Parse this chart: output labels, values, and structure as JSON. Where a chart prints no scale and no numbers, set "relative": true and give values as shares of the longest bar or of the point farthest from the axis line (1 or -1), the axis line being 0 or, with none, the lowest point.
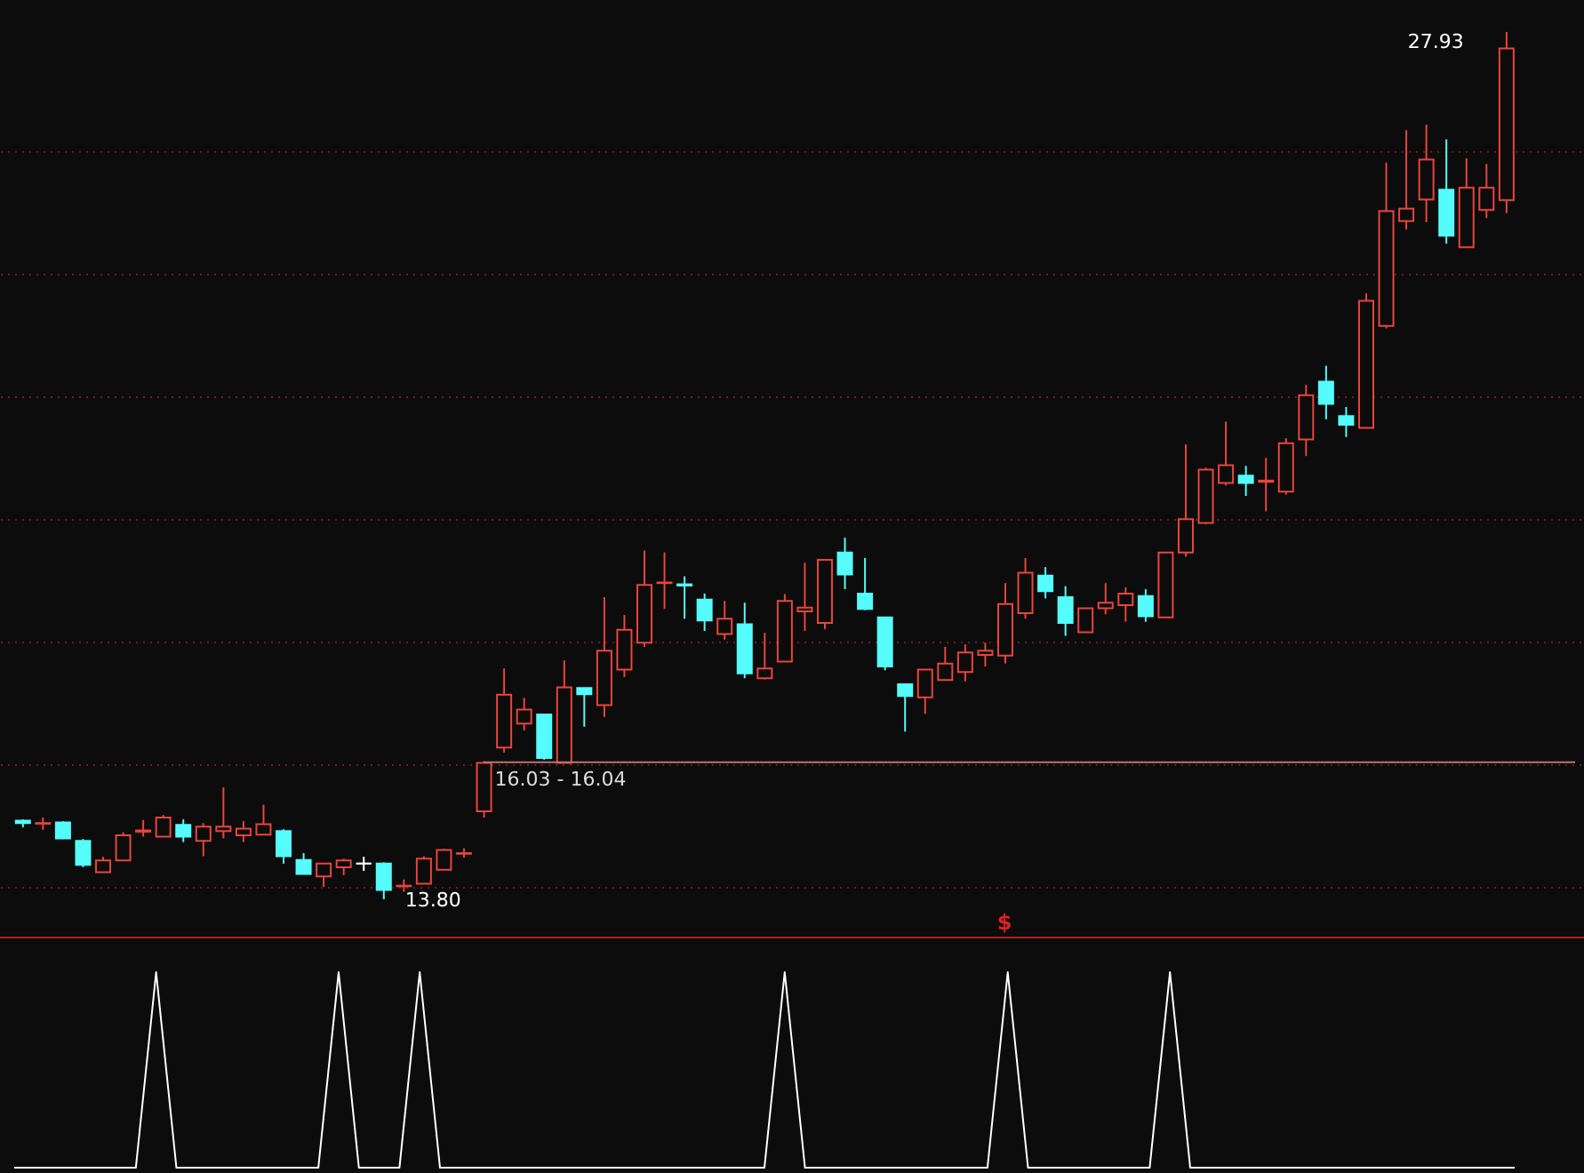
{
  "chart_data": [
    {
      "type": "candlestick",
      "categories": [
        null,
        null,
        null,
        null,
        null,
        null,
        null,
        null,
        null,
        null,
        null,
        null,
        null,
        null,
        null,
        null,
        null,
        null,
        null,
        null,
        null,
        null,
        null,
        null,
        null,
        null,
        null,
        null,
        null,
        null,
        null,
        null,
        null,
        null,
        null,
        null,
        null,
        null,
        null,
        null,
        null,
        null,
        null,
        null,
        null,
        null,
        null,
        null,
        null,
        null,
        null,
        null,
        null,
        null,
        null,
        null,
        null,
        null,
        null,
        null,
        null,
        null,
        null,
        null,
        null,
        null,
        null,
        null,
        null,
        null,
        null,
        null,
        null,
        null,
        null
      ],
      "ohlc": [
        [
          15.08,
          15.1,
          14.97,
          15.04
        ],
        [
          15.03,
          15.13,
          14.93,
          15.04
        ],
        [
          15.05,
          15.07,
          14.78,
          14.79
        ],
        [
          14.75,
          14.78,
          14.32,
          14.36
        ],
        [
          14.24,
          14.49,
          14.23,
          14.43
        ],
        [
          14.43,
          14.89,
          14.43,
          14.84
        ],
        [
          14.9,
          15.09,
          14.82,
          14.92
        ],
        [
          14.82,
          15.17,
          14.82,
          15.13
        ],
        [
          15.01,
          15.1,
          14.73,
          14.82
        ],
        [
          14.75,
          15.04,
          14.5,
          14.98
        ],
        [
          14.91,
          15.62,
          14.79,
          14.98
        ],
        [
          14.84,
          15.07,
          14.73,
          14.95
        ],
        [
          14.85,
          15.34,
          14.85,
          15.02
        ],
        [
          14.91,
          14.94,
          14.38,
          14.5
        ],
        [
          14.44,
          14.55,
          14.21,
          14.21
        ],
        [
          14.17,
          14.38,
          14.0,
          14.38
        ],
        [
          14.32,
          14.46,
          14.19,
          14.43
        ],
        [
          14.38,
          14.49,
          14.26,
          14.38
        ],
        [
          14.38,
          14.4,
          13.8,
          13.95
        ],
        [
          14.01,
          14.12,
          13.92,
          14.02
        ],
        [
          14.05,
          14.5,
          14.05,
          14.46
        ],
        [
          14.28,
          14.62,
          14.28,
          14.6
        ],
        [
          14.54,
          14.63,
          14.48,
          14.55
        ],
        [
          15.23,
          16.05,
          15.13,
          16.02
        ],
        [
          16.27,
          17.56,
          16.19,
          17.13
        ],
        [
          16.66,
          17.08,
          16.55,
          16.89
        ],
        [
          16.81,
          16.81,
          16.07,
          16.1
        ],
        [
          16.02,
          17.69,
          16.02,
          17.25
        ],
        [
          17.24,
          17.24,
          16.61,
          17.14
        ],
        [
          16.96,
          18.72,
          16.77,
          17.85
        ],
        [
          17.54,
          18.43,
          17.42,
          18.19
        ],
        [
          17.98,
          19.48,
          17.91,
          18.92
        ],
        [
          18.95,
          19.45,
          18.53,
          18.96
        ],
        [
          18.93,
          19.06,
          18.37,
          18.91
        ],
        [
          18.68,
          18.78,
          18.17,
          18.34
        ],
        [
          18.12,
          18.66,
          18.03,
          18.37
        ],
        [
          18.28,
          18.63,
          17.4,
          17.48
        ],
        [
          17.4,
          18.14,
          17.38,
          17.56
        ],
        [
          17.67,
          18.77,
          17.67,
          18.66
        ],
        [
          18.49,
          19.28,
          18.17,
          18.55
        ],
        [
          18.3,
          19.33,
          18.2,
          19.33
        ],
        [
          19.45,
          19.69,
          18.85,
          19.09
        ],
        [
          18.78,
          19.36,
          18.51,
          18.53
        ],
        [
          18.39,
          18.39,
          17.53,
          17.59
        ],
        [
          17.3,
          17.3,
          16.53,
          17.11
        ],
        [
          17.09,
          17.54,
          16.82,
          17.54
        ],
        [
          17.37,
          17.91,
          17.37,
          17.64
        ],
        [
          17.5,
          17.95,
          17.35,
          17.82
        ],
        [
          17.78,
          17.98,
          17.59,
          17.85
        ],
        [
          17.77,
          18.95,
          17.64,
          18.61
        ],
        [
          18.46,
          19.36,
          18.37,
          19.12
        ],
        [
          19.07,
          19.21,
          18.7,
          18.82
        ],
        [
          18.72,
          18.9,
          18.09,
          18.3
        ],
        [
          18.15,
          18.54,
          18.15,
          18.54
        ],
        [
          18.54,
          18.95,
          18.44,
          18.63
        ],
        [
          18.59,
          18.88,
          18.32,
          18.78
        ],
        [
          18.74,
          18.85,
          18.32,
          18.41
        ],
        [
          18.39,
          19.45,
          18.39,
          19.45
        ],
        [
          19.45,
          21.21,
          19.38,
          19.99
        ],
        [
          19.93,
          20.83,
          19.91,
          20.8
        ],
        [
          20.58,
          21.58,
          20.54,
          20.87
        ],
        [
          20.7,
          20.86,
          20.37,
          20.58
        ],
        [
          20.6,
          20.99,
          20.12,
          20.62
        ],
        [
          20.44,
          21.31,
          20.39,
          21.23
        ],
        [
          21.29,
          22.18,
          21.02,
          22.01
        ],
        [
          22.23,
          22.49,
          21.62,
          21.87
        ],
        [
          21.67,
          21.82,
          21.33,
          21.53
        ],
        [
          21.48,
          23.67,
          21.48,
          23.55
        ],
        [
          23.14,
          25.8,
          23.1,
          25.01
        ],
        [
          24.85,
          26.33,
          24.71,
          25.05
        ],
        [
          25.2,
          26.42,
          24.83,
          25.85
        ],
        [
          25.36,
          26.18,
          24.48,
          24.61
        ],
        [
          24.42,
          25.87,
          24.42,
          25.39
        ],
        [
          25.03,
          25.78,
          24.9,
          25.39
        ],
        [
          25.19,
          27.93,
          24.98,
          27.66
        ]
      ],
      "colors": [
        "#54fcfc",
        "#e8453c",
        "#54fcfc",
        "#54fcfc",
        "#e8453c",
        "#e8453c",
        "#e8453c",
        "#e8453c",
        "#54fcfc",
        "#e8453c",
        "#e8453c",
        "#e8453c",
        "#e8453c",
        "#54fcfc",
        "#54fcfc",
        "#e8453c",
        "#e8453c",
        "#ffffff",
        "#54fcfc",
        "#e8453c",
        "#e8453c",
        "#e8453c",
        "#e8453c",
        "#e8453c",
        "#e8453c",
        "#e8453c",
        "#54fcfc",
        "#e8453c",
        "#54fcfc",
        "#e8453c",
        "#e8453c",
        "#e8453c",
        "#e8453c",
        "#54fcfc",
        "#54fcfc",
        "#e8453c",
        "#54fcfc",
        "#e8453c",
        "#e8453c",
        "#e8453c",
        "#e8453c",
        "#54fcfc",
        "#54fcfc",
        "#54fcfc",
        "#54fcfc",
        "#e8453c",
        "#e8453c",
        "#e8453c",
        "#e8453c",
        "#e8453c",
        "#e8453c",
        "#54fcfc",
        "#54fcfc",
        "#e8453c",
        "#e8453c",
        "#e8453c",
        "#54fcfc",
        "#e8453c",
        "#e8453c",
        "#e8453c",
        "#e8453c",
        "#54fcfc",
        "#e8453c",
        "#e8453c",
        "#e8453c",
        "#54fcfc",
        "#54fcfc",
        "#e8453c",
        "#e8453c",
        "#e8453c",
        "#e8453c",
        "#54fcfc",
        "#e8453c",
        "#e8453c",
        "#e8453c"
      ],
      "ylim": [
        13.19,
        28.45
      ],
      "yticks": [
        {
          "value": 14,
          "label": null
        },
        {
          "value": 16,
          "label": null
        },
        {
          "value": 18,
          "label": null
        },
        {
          "value": 20,
          "label": null
        },
        {
          "value": 22,
          "label": null
        },
        {
          "value": 24,
          "label": null
        },
        {
          "value": 26,
          "label": null
        }
      ],
      "grid": "y",
      "ref_lines": [
        {
          "axis": "y",
          "value": 16.03,
          "label": "16.03 - 16.04",
          "color": "#c07070"
        }
      ],
      "annotations": [
        "27.93",
        "13.80"
      ]
    },
    {
      "type": "line",
      "relative": true,
      "categories": [
        null,
        null,
        null,
        null,
        null,
        null,
        null,
        null,
        null,
        null,
        null,
        null,
        null,
        null,
        null,
        null,
        null,
        null,
        null,
        null,
        null,
        null,
        null,
        null,
        null,
        null,
        null,
        null,
        null,
        null,
        null,
        null,
        null,
        null,
        null,
        null,
        null,
        null,
        null,
        null,
        null,
        null,
        null,
        null,
        null,
        null,
        null,
        null,
        null,
        null,
        null,
        null,
        null,
        null,
        null,
        null,
        null,
        null,
        null,
        null,
        null,
        null,
        null,
        null,
        null,
        null,
        null,
        null,
        null,
        null,
        null,
        null,
        null,
        null,
        null
      ],
      "series": [
        {
          "color": "#ffffff",
          "values": [
            0,
            0,
            0,
            0,
            0,
            0,
            0,
            1,
            0,
            0,
            0,
            0,
            0,
            0,
            0,
            0,
            1,
            0,
            0,
            0,
            1,
            0,
            0,
            0,
            0,
            0,
            0,
            0,
            0,
            0,
            0,
            0,
            0,
            0,
            0,
            0,
            0,
            0,
            1,
            0,
            0,
            0,
            0,
            0,
            0,
            0,
            0,
            0,
            0,
            1,
            0,
            0,
            0,
            0,
            0,
            0,
            0,
            1,
            0,
            0,
            0,
            0,
            0,
            0,
            0,
            0,
            0,
            0,
            0,
            0,
            0,
            0,
            0,
            0,
            0
          ]
        }
      ],
      "annotations": [
        "$"
      ]
    }
  ]
}
